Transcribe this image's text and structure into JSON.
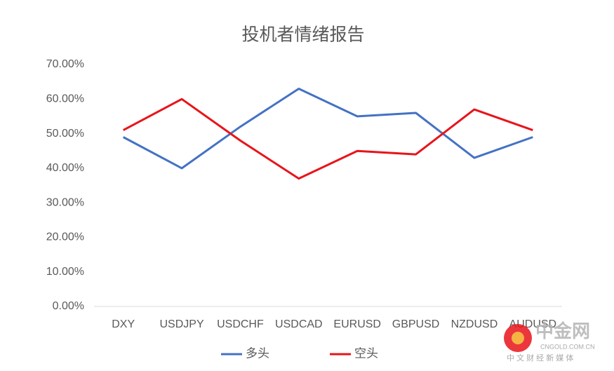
{
  "chart_data": {
    "type": "line",
    "title": "投机者情绪报告",
    "categories": [
      "DXY",
      "USDJPY",
      "USDCHF",
      "USDCAD",
      "EURUSD",
      "GBPUSD",
      "NZDUSD",
      "AUDUSD"
    ],
    "series": [
      {
        "name": "多头",
        "color": "#4472c4",
        "values": [
          49,
          40,
          52,
          63,
          55,
          56,
          43,
          49
        ]
      },
      {
        "name": "空头",
        "color": "#e8141b",
        "values": [
          51,
          60,
          48,
          37,
          45,
          44,
          57,
          51
        ]
      }
    ],
    "ylim": [
      0,
      70
    ],
    "yticks": [
      {
        "value": 0,
        "label": "0.00%"
      },
      {
        "value": 10,
        "label": "10.00%"
      },
      {
        "value": 20,
        "label": "20.00%"
      },
      {
        "value": 30,
        "label": "30.00%"
      },
      {
        "value": 40,
        "label": "40.00%"
      },
      {
        "value": 50,
        "label": "50.00%"
      },
      {
        "value": 60,
        "label": "60.00%"
      },
      {
        "value": 70,
        "label": "70.00%"
      }
    ],
    "grid": false,
    "legend": "bottom"
  },
  "watermark": {
    "logo": "中金网",
    "site": "CNGOLD.COM.CN",
    "slogan": "中 文 财 经 新 媒 体"
  }
}
